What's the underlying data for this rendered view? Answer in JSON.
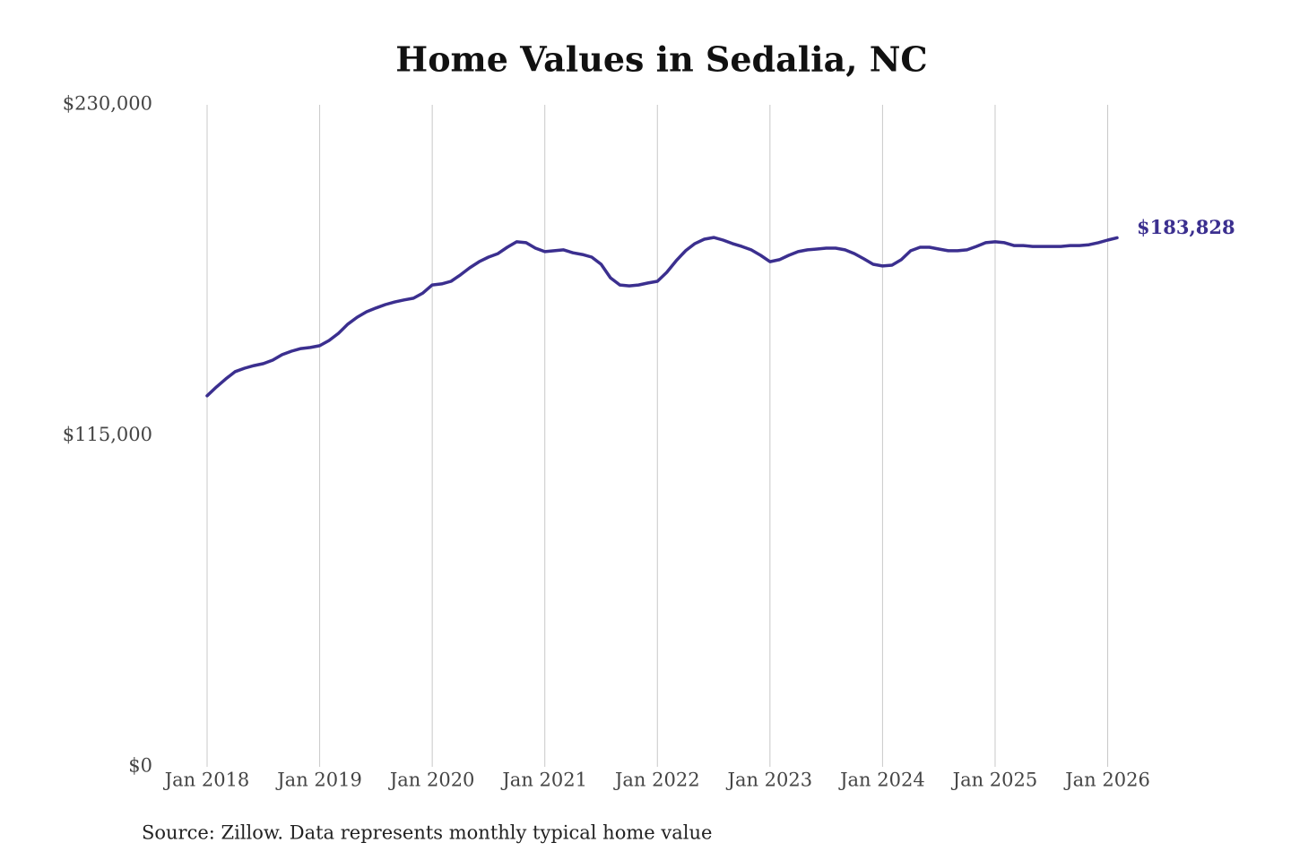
{
  "chart_data": {
    "type": "line",
    "title": "Home Values in Sedalia, NC",
    "source": "Source: Zillow. Data represents monthly typical home value",
    "color": "#3b2f8f",
    "x": [
      "2018-01",
      "2018-02",
      "2018-03",
      "2018-04",
      "2018-05",
      "2018-06",
      "2018-07",
      "2018-08",
      "2018-09",
      "2018-10",
      "2018-11",
      "2018-12",
      "2019-01",
      "2019-02",
      "2019-03",
      "2019-04",
      "2019-05",
      "2019-06",
      "2019-07",
      "2019-08",
      "2019-09",
      "2019-10",
      "2019-11",
      "2019-12",
      "2020-01",
      "2020-02",
      "2020-03",
      "2020-04",
      "2020-05",
      "2020-06",
      "2020-07",
      "2020-08",
      "2020-09",
      "2020-10",
      "2020-11",
      "2020-12",
      "2021-01",
      "2021-02",
      "2021-03",
      "2021-04",
      "2021-05",
      "2021-06",
      "2021-07",
      "2021-08",
      "2021-09",
      "2021-10",
      "2021-11",
      "2021-12",
      "2022-01",
      "2022-02",
      "2022-03",
      "2022-04",
      "2022-05",
      "2022-06",
      "2022-07",
      "2022-08",
      "2022-09",
      "2022-10",
      "2022-11",
      "2022-12",
      "2023-01",
      "2023-02",
      "2023-03",
      "2023-04",
      "2023-05",
      "2023-06",
      "2023-07",
      "2023-08",
      "2023-09",
      "2023-10",
      "2023-11",
      "2023-12",
      "2024-01",
      "2024-02",
      "2024-03",
      "2024-04",
      "2024-05",
      "2024-06",
      "2024-07",
      "2024-08",
      "2024-09",
      "2024-10",
      "2024-11",
      "2024-12",
      "2025-01",
      "2025-02",
      "2025-03",
      "2025-04",
      "2025-05",
      "2025-06",
      "2025-07",
      "2025-08",
      "2025-09",
      "2025-10",
      "2025-11",
      "2025-12",
      "2026-01",
      "2026-02"
    ],
    "values": [
      128900,
      132000,
      134800,
      137300,
      138500,
      139400,
      140100,
      141300,
      143200,
      144400,
      145300,
      145700,
      146300,
      148100,
      150600,
      153800,
      156200,
      158100,
      159400,
      160600,
      161500,
      162200,
      162800,
      164600,
      167400,
      167800,
      168700,
      170900,
      173400,
      175500,
      177100,
      178300,
      180500,
      182400,
      182100,
      180200,
      179000,
      179300,
      179600,
      178600,
      178000,
      177100,
      174600,
      169900,
      167400,
      167100,
      167400,
      168100,
      168700,
      171800,
      175800,
      179300,
      181800,
      183300,
      183900,
      183000,
      181800,
      180800,
      179600,
      177700,
      175500,
      176200,
      177700,
      179000,
      179600,
      179900,
      180200,
      180200,
      179600,
      178300,
      176500,
      174600,
      174000,
      174300,
      176200,
      179300,
      180500,
      180500,
      179900,
      179300,
      179300,
      179600,
      180800,
      182100,
      182400,
      182100,
      181100,
      181100,
      180800,
      180800,
      180800,
      180800,
      181100,
      181100,
      181400,
      182100,
      183000,
      183828
    ],
    "value_labels": [
      null,
      null,
      null,
      null,
      null,
      null,
      null,
      null,
      null,
      null,
      null,
      null,
      null,
      null,
      null,
      null,
      null,
      null,
      null,
      null,
      null,
      null,
      null,
      null,
      null,
      null,
      null,
      null,
      null,
      null,
      null,
      null,
      null,
      null,
      null,
      null,
      null,
      null,
      null,
      null,
      null,
      null,
      null,
      null,
      null,
      null,
      null,
      null,
      null,
      null,
      null,
      null,
      null,
      null,
      null,
      null,
      null,
      null,
      null,
      null,
      null,
      null,
      null,
      null,
      null,
      null,
      null,
      null,
      null,
      null,
      null,
      null,
      null,
      null,
      null,
      null,
      null,
      null,
      null,
      null,
      null,
      null,
      null,
      null,
      null,
      null,
      null,
      null,
      null,
      null,
      null,
      null,
      null,
      null,
      null,
      null,
      null,
      "$183,828"
    ],
    "xlim": [
      "2018-01",
      "2026-02"
    ],
    "xticks": [
      {
        "value": "2018-01",
        "label": "Jan 2018"
      },
      {
        "value": "2019-01",
        "label": "Jan 2019"
      },
      {
        "value": "2020-01",
        "label": "Jan 2020"
      },
      {
        "value": "2021-01",
        "label": "Jan 2021"
      },
      {
        "value": "2022-01",
        "label": "Jan 2022"
      },
      {
        "value": "2023-01",
        "label": "Jan 2023"
      },
      {
        "value": "2024-01",
        "label": "Jan 2024"
      },
      {
        "value": "2025-01",
        "label": "Jan 2025"
      },
      {
        "value": "2026-01",
        "label": "Jan 2026"
      }
    ],
    "ylim": [
      0,
      230000
    ],
    "yticks": [
      {
        "value": 0,
        "label": "$0"
      },
      {
        "value": 115000,
        "label": "$115,000"
      },
      {
        "value": 230000,
        "label": "$230,000"
      }
    ],
    "grid": "x"
  }
}
